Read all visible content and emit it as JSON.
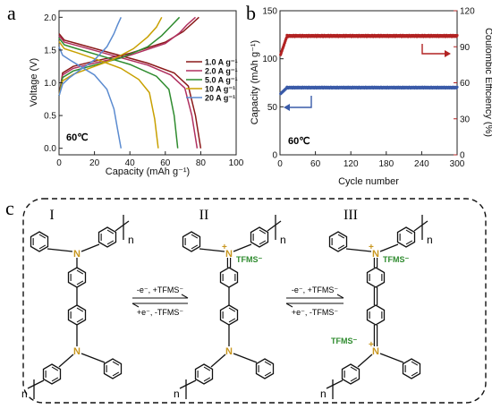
{
  "chart_data": [
    {
      "panel": "a",
      "type": "line",
      "xlabel": "Capacity (mAh g⁻¹)",
      "ylabel": "Voltage (V)",
      "xlim": [
        0,
        100
      ],
      "ylim": [
        -0.1,
        2.1
      ],
      "xticks": [
        "0",
        "20",
        "40",
        "60",
        "80",
        "100"
      ],
      "yticks": [
        "0.0",
        "0.5",
        "1.0",
        "1.5",
        "2.0"
      ],
      "annotation": "60℃",
      "legend_position": "right",
      "series": [
        {
          "name": "1.0 A g⁻¹",
          "color": "#8B1A1A",
          "charge": {
            "x": [
              0,
              2,
              8,
              20,
              40,
              60,
              70,
              75,
              79
            ],
            "y": [
              0.8,
              1.15,
              1.25,
              1.33,
              1.45,
              1.62,
              1.78,
              1.9,
              2.0
            ]
          },
          "discharge": {
            "x": [
              0,
              3,
              10,
              30,
              50,
              65,
              73,
              77,
              80
            ],
            "y": [
              1.75,
              1.65,
              1.6,
              1.45,
              1.3,
              1.15,
              0.95,
              0.5,
              0.0
            ]
          }
        },
        {
          "name": "2.0 A g⁻¹",
          "color": "#B03060",
          "charge": {
            "x": [
              0,
              2,
              8,
              20,
              40,
              60,
              68,
              72,
              77
            ],
            "y": [
              0.8,
              1.12,
              1.22,
              1.3,
              1.42,
              1.6,
              1.76,
              1.88,
              2.0
            ]
          },
          "discharge": {
            "x": [
              0,
              3,
              10,
              30,
              50,
              63,
              71,
              75,
              78
            ],
            "y": [
              1.72,
              1.62,
              1.57,
              1.42,
              1.27,
              1.12,
              0.92,
              0.5,
              0.0
            ]
          }
        },
        {
          "name": "5.0 A g⁻¹",
          "color": "#2E8B2E",
          "charge": {
            "x": [
              0,
              2,
              8,
              20,
              35,
              50,
              58,
              63,
              68
            ],
            "y": [
              0.8,
              1.08,
              1.18,
              1.27,
              1.38,
              1.55,
              1.72,
              1.86,
              2.0
            ]
          },
          "discharge": {
            "x": [
              0,
              3,
              10,
              25,
              40,
              55,
              62,
              65,
              67
            ],
            "y": [
              1.68,
              1.58,
              1.52,
              1.4,
              1.28,
              1.1,
              0.9,
              0.5,
              0.0
            ]
          }
        },
        {
          "name": "10 A g⁻¹",
          "color": "#C8A000",
          "charge": {
            "x": [
              0,
              2,
              8,
              18,
              30,
              42,
              50,
              55,
              58
            ],
            "y": [
              0.8,
              1.03,
              1.13,
              1.23,
              1.35,
              1.52,
              1.7,
              1.85,
              2.0
            ]
          },
          "discharge": {
            "x": [
              0,
              3,
              10,
              22,
              35,
              45,
              51,
              54,
              56
            ],
            "y": [
              1.63,
              1.52,
              1.46,
              1.35,
              1.22,
              1.05,
              0.85,
              0.45,
              0.0
            ]
          }
        },
        {
          "name": "20 A g⁻¹",
          "color": "#5B8BD0",
          "charge": {
            "x": [
              0,
              2,
              6,
              12,
              20,
              27,
              31,
              33,
              35
            ],
            "y": [
              0.8,
              0.98,
              1.08,
              1.2,
              1.35,
              1.55,
              1.75,
              1.88,
              2.0
            ]
          },
          "discharge": {
            "x": [
              0,
              2,
              6,
              12,
              20,
              27,
              31,
              33,
              35
            ],
            "y": [
              1.55,
              1.42,
              1.35,
              1.25,
              1.12,
              0.9,
              0.6,
              0.3,
              0.0
            ]
          }
        }
      ]
    },
    {
      "panel": "b",
      "type": "scatter",
      "xlabel": "Cycle number",
      "ylabel_left": "Capacity (mAh g⁻¹)",
      "ylabel_right": "Coulombic Efficiency (%)",
      "xlim": [
        0,
        300
      ],
      "ylim_left": [
        0,
        150
      ],
      "ylim_right": [
        0,
        120
      ],
      "xticks": [
        "0",
        "60",
        "120",
        "180",
        "240",
        "300"
      ],
      "yticks_left": [
        "0",
        "50",
        "100",
        "150"
      ],
      "yticks_right": [
        "0",
        "30",
        "60",
        "90",
        "120"
      ],
      "annotation": "60℃",
      "grid": false,
      "series": [
        {
          "axis": "left",
          "color": "#3A5BA8",
          "points": 300,
          "start_value": 63,
          "plateau_value": 70
        },
        {
          "axis": "right",
          "color": "#B22222",
          "points": 300,
          "start_value": 82,
          "plateau_value": 99
        }
      ]
    }
  ],
  "scheme": {
    "panel_label": "c",
    "structures": [
      {
        "numeral": "I"
      },
      {
        "numeral": "II"
      },
      {
        "numeral": "III"
      }
    ],
    "atom_n": "N",
    "charge_plus": "+",
    "counter_ion": "TFMS⁻",
    "repeat_n": "n",
    "step1": {
      "forward": "-e⁻, +TFMS⁻",
      "reverse": "+e⁻, -TFMS⁻"
    },
    "step2": {
      "forward": "-e⁻, +TFMS⁻",
      "reverse": "+e⁻, -TFMS⁻"
    },
    "atom_color": "#C8961E",
    "bond_color": "#111111"
  }
}
